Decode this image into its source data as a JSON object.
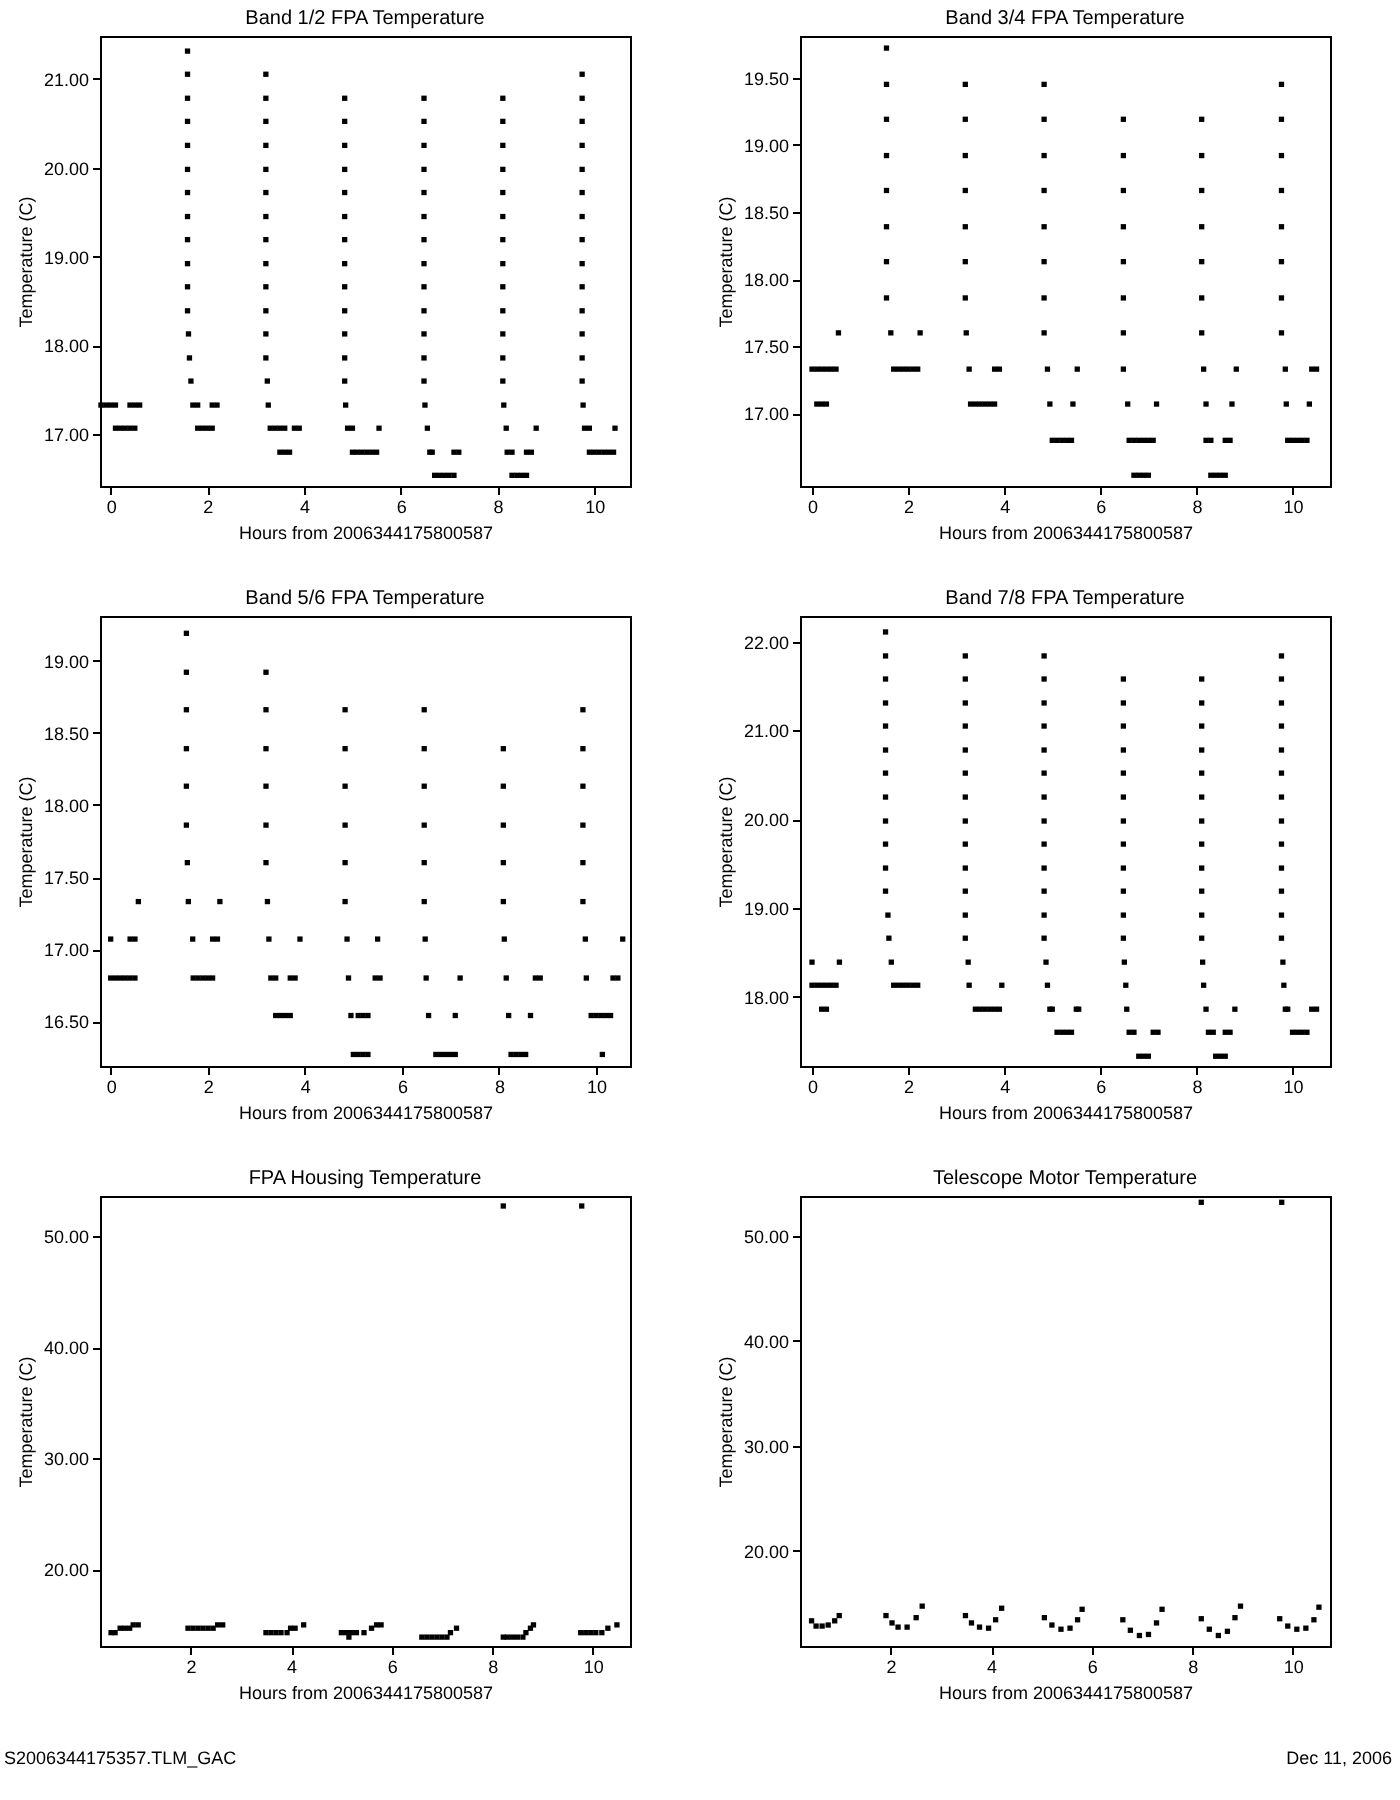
{
  "chart_data": [
    {
      "type": "scatter",
      "title": "Band 1/2 FPA Temperature",
      "xlabel": "Hours from 2006344175800587",
      "ylabel": "Temperature (C)",
      "color": "#000000",
      "marker": "square",
      "xlim": [
        -0.22,
        10.74
      ],
      "ylim": [
        16.42,
        21.48
      ],
      "xticks": [
        0,
        2,
        4,
        6,
        8,
        10
      ],
      "yticks": [
        {
          "value": 17,
          "label": "17.00"
        },
        {
          "value": 18,
          "label": "18.00"
        },
        {
          "value": 19,
          "label": "19.00"
        },
        {
          "value": 20,
          "label": "20.00"
        },
        {
          "value": 21,
          "label": "21.00"
        }
      ],
      "x": [
        -0.2,
        -0.1,
        0,
        0.1,
        0.4,
        0.5,
        0.6,
        0.1,
        0.2,
        0.3,
        0.4,
        0.5,
        1.59,
        1.59,
        1.59,
        1.59,
        1.59,
        1.59,
        1.59,
        1.59,
        1.59,
        1.59,
        1.59,
        1.59,
        1.61,
        1.63,
        1.66,
        1.7,
        1.8,
        2.1,
        2.2,
        1.8,
        1.9,
        2.0,
        2.1,
        3.21,
        3.21,
        3.21,
        3.21,
        3.21,
        3.21,
        3.21,
        3.21,
        3.21,
        3.21,
        3.21,
        3.21,
        3.21,
        3.24,
        3.26,
        3.3,
        3.4,
        3.5,
        3.6,
        3.8,
        3.9,
        3.5,
        3.6,
        3.7,
        4.84,
        4.84,
        4.84,
        4.84,
        4.84,
        4.84,
        4.84,
        4.84,
        4.84,
        4.84,
        4.84,
        4.84,
        4.84,
        4.86,
        4.9,
        5.0,
        5.55,
        5.0,
        5.1,
        5.2,
        5.3,
        5.4,
        5.5,
        6.48,
        6.48,
        6.48,
        6.48,
        6.48,
        6.48,
        6.48,
        6.48,
        6.48,
        6.48,
        6.48,
        6.48,
        6.48,
        6.5,
        6.55,
        6.6,
        6.65,
        7.1,
        7.2,
        6.7,
        6.8,
        6.9,
        7.0,
        7.1,
        8.11,
        8.11,
        8.11,
        8.11,
        8.11,
        8.11,
        8.11,
        8.11,
        8.11,
        8.11,
        8.11,
        8.11,
        8.11,
        8.13,
        8.18,
        8.8,
        8.2,
        8.3,
        8.6,
        8.7,
        8.3,
        8.4,
        8.5,
        8.6,
        9.75,
        9.75,
        9.75,
        9.75,
        9.75,
        9.75,
        9.75,
        9.75,
        9.75,
        9.75,
        9.75,
        9.75,
        9.75,
        9.75,
        9.77,
        9.8,
        9.9,
        10.43,
        9.9,
        10.0,
        10.1,
        10.2,
        10.3,
        10.4
      ],
      "values": [
        17.33,
        17.33,
        17.33,
        17.33,
        17.33,
        17.33,
        17.33,
        17.07,
        17.07,
        17.07,
        17.07,
        17.07,
        18.39,
        18.66,
        18.92,
        19.19,
        19.45,
        19.72,
        19.98,
        20.25,
        20.52,
        20.78,
        21.05,
        21.31,
        18.13,
        17.86,
        17.6,
        17.33,
        17.33,
        17.33,
        17.33,
        17.07,
        17.07,
        17.07,
        17.07,
        17.86,
        18.13,
        18.39,
        18.66,
        18.92,
        19.19,
        19.45,
        19.72,
        19.98,
        20.25,
        20.52,
        20.78,
        21.05,
        17.6,
        17.33,
        17.07,
        17.07,
        17.07,
        17.07,
        17.07,
        17.07,
        16.8,
        16.8,
        16.8,
        17.6,
        17.86,
        18.13,
        18.39,
        18.66,
        18.92,
        19.19,
        19.45,
        19.72,
        19.98,
        20.25,
        20.52,
        20.78,
        17.33,
        17.07,
        17.07,
        17.07,
        16.8,
        16.8,
        16.8,
        16.8,
        16.8,
        16.8,
        17.6,
        17.86,
        18.13,
        18.39,
        18.66,
        18.92,
        19.19,
        19.45,
        19.72,
        19.98,
        20.25,
        20.52,
        20.78,
        17.33,
        17.07,
        16.8,
        16.8,
        16.8,
        16.8,
        16.54,
        16.54,
        16.54,
        16.54,
        16.54,
        17.6,
        17.86,
        18.13,
        18.39,
        18.66,
        18.92,
        19.19,
        19.45,
        19.72,
        19.98,
        20.25,
        20.52,
        20.78,
        17.33,
        17.07,
        17.07,
        16.8,
        16.8,
        16.8,
        16.8,
        16.54,
        16.54,
        16.54,
        16.54,
        17.6,
        17.86,
        18.13,
        18.39,
        18.66,
        18.92,
        19.19,
        19.45,
        19.72,
        19.98,
        20.25,
        20.52,
        20.78,
        21.05,
        17.33,
        17.07,
        17.07,
        17.07,
        16.8,
        16.8,
        16.8,
        16.8,
        16.8,
        16.8
      ]
    },
    {
      "type": "scatter",
      "title": "Band 3/4 FPA Temperature",
      "xlabel": "Hours from 2006344175800587",
      "ylabel": "Temperature (C)",
      "color": "#000000",
      "marker": "square",
      "xlim": [
        -0.25,
        10.78
      ],
      "ylim": [
        16.46,
        19.81
      ],
      "xticks": [
        0,
        2,
        4,
        6,
        8,
        10
      ],
      "yticks": [
        {
          "value": 17,
          "label": "17.00"
        },
        {
          "value": 17.5,
          "label": "17.50"
        },
        {
          "value": 18,
          "label": "18.00"
        },
        {
          "value": 18.5,
          "label": "18.50"
        },
        {
          "value": 19,
          "label": "19.00"
        },
        {
          "value": 19.5,
          "label": "19.50"
        }
      ],
      "x": [
        0,
        0.1,
        0.2,
        0.3,
        0.4,
        0.5,
        0.1,
        0.2,
        0.3,
        0.55,
        1.55,
        1.55,
        1.55,
        1.55,
        1.55,
        1.55,
        1.55,
        1.55,
        1.64,
        1.7,
        1.8,
        1.9,
        2.0,
        2.1,
        2.2,
        2.25,
        3.19,
        3.19,
        3.19,
        3.19,
        3.19,
        3.19,
        3.19,
        3.21,
        3.27,
        3.8,
        3.9,
        3.3,
        3.4,
        3.5,
        3.6,
        3.7,
        3.8,
        4.83,
        4.83,
        4.83,
        4.83,
        4.83,
        4.83,
        4.83,
        4.83,
        4.9,
        4.95,
        5.52,
        5.43,
        5.0,
        5.1,
        5.2,
        5.3,
        5.4,
        6.48,
        6.48,
        6.48,
        6.48,
        6.48,
        6.48,
        6.48,
        6.48,
        6.57,
        7.17,
        6.6,
        6.7,
        6.8,
        6.9,
        7.0,
        7.1,
        6.7,
        6.8,
        6.9,
        7.0,
        8.11,
        8.11,
        8.11,
        8.11,
        8.11,
        8.11,
        8.11,
        8.15,
        8.2,
        8.83,
        8.74,
        8.2,
        8.3,
        8.6,
        8.7,
        8.3,
        8.4,
        8.5,
        8.6,
        9.77,
        9.77,
        9.77,
        9.77,
        9.77,
        9.77,
        9.77,
        9.77,
        9.85,
        9.87,
        10.4,
        10.5,
        10.35,
        9.9,
        10.0,
        10.1,
        10.2,
        10.3
      ],
      "values": [
        17.33,
        17.33,
        17.33,
        17.33,
        17.33,
        17.33,
        17.07,
        17.07,
        17.07,
        17.6,
        17.86,
        18.13,
        18.39,
        18.66,
        18.92,
        19.19,
        19.45,
        19.72,
        17.6,
        17.33,
        17.33,
        17.33,
        17.33,
        17.33,
        17.33,
        17.6,
        17.86,
        18.13,
        18.39,
        18.66,
        18.92,
        19.19,
        19.45,
        17.6,
        17.33,
        17.33,
        17.33,
        17.07,
        17.07,
        17.07,
        17.07,
        17.07,
        17.07,
        17.6,
        17.86,
        18.13,
        18.39,
        18.66,
        18.92,
        19.19,
        19.45,
        17.33,
        17.07,
        17.33,
        17.07,
        16.8,
        16.8,
        16.8,
        16.8,
        16.8,
        17.33,
        17.6,
        17.86,
        18.13,
        18.39,
        18.66,
        18.92,
        19.19,
        17.07,
        17.07,
        16.8,
        16.8,
        16.8,
        16.8,
        16.8,
        16.8,
        16.54,
        16.54,
        16.54,
        16.54,
        17.6,
        17.86,
        18.13,
        18.39,
        18.66,
        18.92,
        19.19,
        17.33,
        17.07,
        17.33,
        17.07,
        16.8,
        16.8,
        16.8,
        16.8,
        16.54,
        16.54,
        16.54,
        16.54,
        17.6,
        17.86,
        18.13,
        18.39,
        18.66,
        18.92,
        19.19,
        19.45,
        17.33,
        17.07,
        17.33,
        17.33,
        17.07,
        16.8,
        16.8,
        16.8,
        16.8,
        16.8
      ]
    },
    {
      "type": "scatter",
      "title": "Band 5/6 FPA Temperature",
      "xlabel": "Hours from 2006344175800587",
      "ylabel": "Temperature (C)",
      "color": "#000000",
      "marker": "square",
      "xlim": [
        -0.22,
        10.7
      ],
      "ylim": [
        16.19,
        19.31
      ],
      "xticks": [
        0,
        2,
        4,
        6,
        8,
        10
      ],
      "yticks": [
        {
          "value": 16.5,
          "label": "16.50"
        },
        {
          "value": 17,
          "label": "17.00"
        },
        {
          "value": 17.5,
          "label": "17.50"
        },
        {
          "value": 18,
          "label": "18.00"
        },
        {
          "value": 18.5,
          "label": "18.50"
        },
        {
          "value": 19,
          "label": "19.00"
        }
      ],
      "x": [
        0,
        0.4,
        0.5,
        0,
        0.1,
        0.2,
        0.3,
        0.4,
        0.5,
        0.57,
        1.56,
        1.56,
        1.56,
        1.56,
        1.56,
        1.56,
        1.58,
        1.6,
        1.69,
        2.1,
        2.2,
        2.25,
        1.7,
        1.8,
        1.9,
        2.0,
        2.1,
        3.2,
        3.2,
        3.2,
        3.2,
        3.2,
        3.2,
        3.23,
        3.26,
        3.9,
        3.3,
        3.4,
        3.7,
        3.8,
        3.4,
        3.5,
        3.6,
        3.7,
        4.83,
        4.83,
        4.83,
        4.83,
        4.83,
        4.83,
        4.87,
        4.9,
        4.95,
        5.1,
        5.2,
        5.3,
        5.5,
        5.45,
        5.55,
        5.0,
        5.1,
        5.2,
        5.3,
        6.46,
        6.46,
        6.46,
        6.46,
        6.46,
        6.46,
        6.48,
        6.5,
        6.55,
        7.2,
        7.1,
        6.7,
        6.8,
        6.9,
        7.0,
        7.1,
        8.09,
        8.09,
        8.09,
        8.09,
        8.09,
        8.11,
        8.15,
        8.2,
        8.75,
        8.85,
        8.65,
        8.25,
        8.35,
        8.45,
        8.55,
        9.73,
        9.73,
        9.73,
        9.73,
        9.73,
        9.73,
        9.78,
        9.8,
        9.9,
        10.0,
        10.1,
        10.2,
        10.3,
        10.35,
        10.45,
        10.55,
        10.13
      ],
      "values": [
        17.07,
        17.07,
        17.07,
        16.8,
        16.8,
        16.8,
        16.8,
        16.8,
        16.8,
        17.33,
        17.86,
        18.13,
        18.39,
        18.66,
        18.92,
        19.19,
        17.6,
        17.33,
        17.07,
        17.07,
        17.07,
        17.33,
        16.8,
        16.8,
        16.8,
        16.8,
        16.8,
        17.6,
        17.86,
        18.13,
        18.39,
        18.66,
        18.92,
        17.33,
        17.07,
        17.07,
        16.8,
        16.8,
        16.8,
        16.8,
        16.54,
        16.54,
        16.54,
        16.54,
        17.33,
        17.6,
        17.86,
        18.13,
        18.39,
        18.66,
        17.07,
        16.8,
        16.54,
        16.54,
        16.54,
        16.54,
        17.07,
        16.8,
        16.8,
        16.27,
        16.27,
        16.27,
        16.27,
        17.33,
        17.6,
        17.86,
        18.13,
        18.39,
        18.66,
        17.07,
        16.8,
        16.54,
        16.8,
        16.54,
        16.27,
        16.27,
        16.27,
        16.27,
        16.27,
        17.33,
        17.6,
        17.86,
        18.13,
        18.39,
        17.07,
        16.8,
        16.54,
        16.8,
        16.8,
        16.54,
        16.27,
        16.27,
        16.27,
        16.27,
        17.33,
        17.6,
        17.86,
        18.13,
        18.39,
        18.66,
        17.07,
        16.8,
        16.54,
        16.54,
        16.54,
        16.54,
        16.54,
        16.8,
        16.8,
        17.07,
        16.27
      ]
    },
    {
      "type": "scatter",
      "title": "Band 7/8 FPA Temperature",
      "xlabel": "Hours from 2006344175800587",
      "ylabel": "Temperature (C)",
      "color": "#000000",
      "marker": "square",
      "xlim": [
        -0.25,
        10.78
      ],
      "ylim": [
        17.22,
        22.29
      ],
      "xticks": [
        0,
        2,
        4,
        6,
        8,
        10
      ],
      "yticks": [
        {
          "value": 18,
          "label": "18.00"
        },
        {
          "value": 19,
          "label": "19.00"
        },
        {
          "value": 20,
          "label": "20.00"
        },
        {
          "value": 21,
          "label": "21.00"
        },
        {
          "value": 22,
          "label": "22.00"
        }
      ],
      "x": [
        0,
        0.57,
        0,
        0.1,
        0.2,
        0.3,
        0.4,
        0.5,
        0.2,
        0.3,
        1.53,
        1.53,
        1.53,
        1.53,
        1.53,
        1.53,
        1.53,
        1.53,
        1.53,
        1.53,
        1.53,
        1.53,
        1.58,
        1.6,
        1.65,
        1.7,
        1.8,
        1.9,
        2.0,
        2.1,
        2.2,
        3.19,
        3.19,
        3.19,
        3.19,
        3.19,
        3.19,
        3.19,
        3.19,
        3.19,
        3.19,
        3.19,
        3.19,
        3.19,
        3.25,
        3.27,
        3.95,
        3.4,
        3.5,
        3.6,
        3.7,
        3.8,
        3.9,
        4.83,
        4.83,
        4.83,
        4.83,
        4.83,
        4.83,
        4.83,
        4.83,
        4.83,
        4.83,
        4.83,
        4.83,
        4.83,
        4.87,
        4.9,
        4.95,
        5.0,
        5.5,
        5.55,
        5.1,
        5.2,
        5.3,
        5.4,
        6.48,
        6.48,
        6.48,
        6.48,
        6.48,
        6.48,
        6.48,
        6.48,
        6.48,
        6.48,
        6.48,
        6.48,
        6.5,
        6.53,
        6.55,
        6.6,
        6.7,
        7.1,
        7.2,
        6.8,
        6.9,
        7.0,
        8.11,
        8.11,
        8.11,
        8.11,
        8.11,
        8.11,
        8.11,
        8.11,
        8.11,
        8.11,
        8.11,
        8.11,
        8.13,
        8.15,
        8.2,
        8.8,
        8.25,
        8.35,
        8.6,
        8.7,
        8.4,
        8.5,
        8.6,
        9.77,
        9.77,
        9.77,
        9.77,
        9.77,
        9.77,
        9.77,
        9.77,
        9.77,
        9.77,
        9.77,
        9.77,
        9.77,
        9.8,
        9.82,
        9.85,
        9.9,
        10.4,
        10.5,
        10.0,
        10.1,
        10.2,
        10.3
      ],
      "values": [
        18.39,
        18.39,
        18.13,
        18.13,
        18.13,
        18.13,
        18.13,
        18.13,
        17.86,
        17.86,
        19.19,
        19.45,
        19.72,
        19.98,
        20.25,
        20.52,
        20.78,
        21.05,
        21.31,
        21.58,
        21.84,
        22.11,
        18.92,
        18.66,
        18.39,
        18.13,
        18.13,
        18.13,
        18.13,
        18.13,
        18.13,
        18.66,
        18.92,
        19.19,
        19.45,
        19.72,
        19.98,
        20.25,
        20.52,
        20.78,
        21.05,
        21.31,
        21.58,
        21.84,
        18.39,
        18.13,
        18.13,
        17.86,
        17.86,
        17.86,
        17.86,
        17.86,
        17.86,
        18.66,
        18.92,
        19.19,
        19.45,
        19.72,
        19.98,
        20.25,
        20.52,
        20.78,
        21.05,
        21.31,
        21.58,
        21.84,
        18.39,
        18.13,
        17.86,
        17.86,
        17.86,
        17.86,
        17.6,
        17.6,
        17.6,
        17.6,
        18.66,
        18.92,
        19.19,
        19.45,
        19.72,
        19.98,
        20.25,
        20.52,
        20.78,
        21.05,
        21.31,
        21.58,
        18.39,
        18.13,
        17.86,
        17.6,
        17.6,
        17.6,
        17.6,
        17.33,
        17.33,
        17.33,
        18.66,
        18.92,
        19.19,
        19.45,
        19.72,
        19.98,
        20.25,
        20.52,
        20.78,
        21.05,
        21.31,
        21.58,
        18.39,
        18.13,
        17.86,
        17.86,
        17.6,
        17.6,
        17.6,
        17.6,
        17.33,
        17.33,
        17.33,
        18.66,
        18.92,
        19.19,
        19.45,
        19.72,
        19.98,
        20.25,
        20.52,
        20.78,
        21.05,
        21.31,
        21.58,
        21.84,
        18.39,
        18.13,
        17.86,
        17.86,
        17.86,
        17.86,
        17.6,
        17.6,
        17.6,
        17.6
      ]
    },
    {
      "type": "scatter",
      "title": "FPA Housing Temperature",
      "xlabel": "Hours from 2006344175800587",
      "ylabel": "Temperature (C)",
      "color": "#000000",
      "marker": "square",
      "xlim": [
        0.2,
        10.74
      ],
      "ylim": [
        13.1,
        53.6
      ],
      "xticks": [
        2,
        4,
        6,
        8,
        10
      ],
      "yticks": [
        {
          "value": 20,
          "label": "20.00"
        },
        {
          "value": 30,
          "label": "30.00"
        },
        {
          "value": 40,
          "label": "40.00"
        },
        {
          "value": 50,
          "label": "50.00"
        }
      ],
      "annotations": [
        "S2006344175357.TLM_GAC"
      ],
      "x": [
        0.42,
        0.5,
        0.6,
        0.69,
        0.79,
        0.86,
        0.96,
        1.95,
        2.05,
        2.15,
        2.25,
        2.35,
        2.45,
        2.54,
        2.64,
        3.5,
        3.6,
        3.7,
        3.8,
        3.92,
        3.99,
        4.08,
        4.25,
        5.15,
        5.0,
        5.1,
        5.2,
        5.3,
        5.45,
        5.6,
        5.7,
        5.79,
        6.6,
        6.7,
        6.8,
        6.9,
        7.0,
        7.1,
        7.17,
        7.29,
        8.22,
        8.3,
        8.4,
        8.5,
        8.61,
        8.67,
        8.76,
        8.82,
        8.22,
        9.76,
        9.86,
        9.96,
        10.06,
        10.18,
        10.3,
        10.48,
        9.78
      ],
      "values": [
        14.3,
        14.3,
        14.7,
        14.7,
        14.7,
        15.0,
        15.0,
        14.7,
        14.7,
        14.7,
        14.7,
        14.7,
        14.7,
        15.0,
        15.0,
        14.3,
        14.3,
        14.3,
        14.3,
        14.3,
        14.7,
        14.7,
        15.0,
        13.9,
        14.3,
        14.3,
        14.3,
        14.3,
        14.3,
        14.7,
        15.0,
        15.0,
        13.9,
        13.9,
        13.9,
        13.9,
        13.9,
        13.9,
        14.3,
        14.7,
        13.9,
        13.9,
        13.9,
        13.9,
        13.9,
        14.3,
        14.7,
        15.0,
        52.7,
        14.3,
        14.3,
        14.3,
        14.3,
        14.3,
        14.7,
        15.0,
        52.7
      ]
    },
    {
      "type": "scatter",
      "title": "Telescope Motor Temperature",
      "xlabel": "Hours from 2006344175800587",
      "ylabel": "Temperature (C)",
      "color": "#000000",
      "marker": "square",
      "xlim": [
        0.2,
        10.74
      ],
      "ylim": [
        10.9,
        53.8
      ],
      "xticks": [
        2,
        4,
        6,
        8,
        10
      ],
      "yticks": [
        {
          "value": 20,
          "label": "20.00"
        },
        {
          "value": 30,
          "label": "30.00"
        },
        {
          "value": 40,
          "label": "40.00"
        },
        {
          "value": 50,
          "label": "50.00"
        }
      ],
      "annotations": [
        "Dec 11, 2006"
      ],
      "x": [
        0.43,
        0.52,
        0.64,
        0.76,
        0.89,
        0.98,
        1.91,
        2.03,
        2.15,
        2.33,
        2.51,
        2.63,
        3.49,
        3.61,
        3.77,
        3.95,
        4.09,
        4.21,
        5.06,
        5.21,
        5.39,
        5.57,
        5.72,
        5.81,
        6.62,
        6.77,
        6.95,
        7.13,
        7.29,
        7.4,
        8.18,
        8.34,
        8.52,
        8.7,
        8.85,
        8.96,
        8.18,
        9.74,
        9.9,
        10.08,
        10.26,
        10.42,
        10.52,
        9.78
      ],
      "values": [
        13.3,
        12.8,
        12.8,
        12.9,
        13.3,
        13.8,
        13.8,
        13.1,
        12.7,
        12.7,
        13.6,
        14.7,
        13.8,
        13.1,
        12.7,
        12.6,
        13.4,
        14.5,
        13.6,
        12.9,
        12.5,
        12.6,
        13.4,
        14.4,
        13.4,
        12.4,
        11.9,
        12.0,
        13.1,
        14.4,
        13.5,
        12.5,
        11.9,
        12.3,
        13.6,
        14.7,
        53.2,
        13.5,
        12.8,
        12.5,
        12.6,
        13.4,
        14.6,
        53.2
      ]
    }
  ]
}
